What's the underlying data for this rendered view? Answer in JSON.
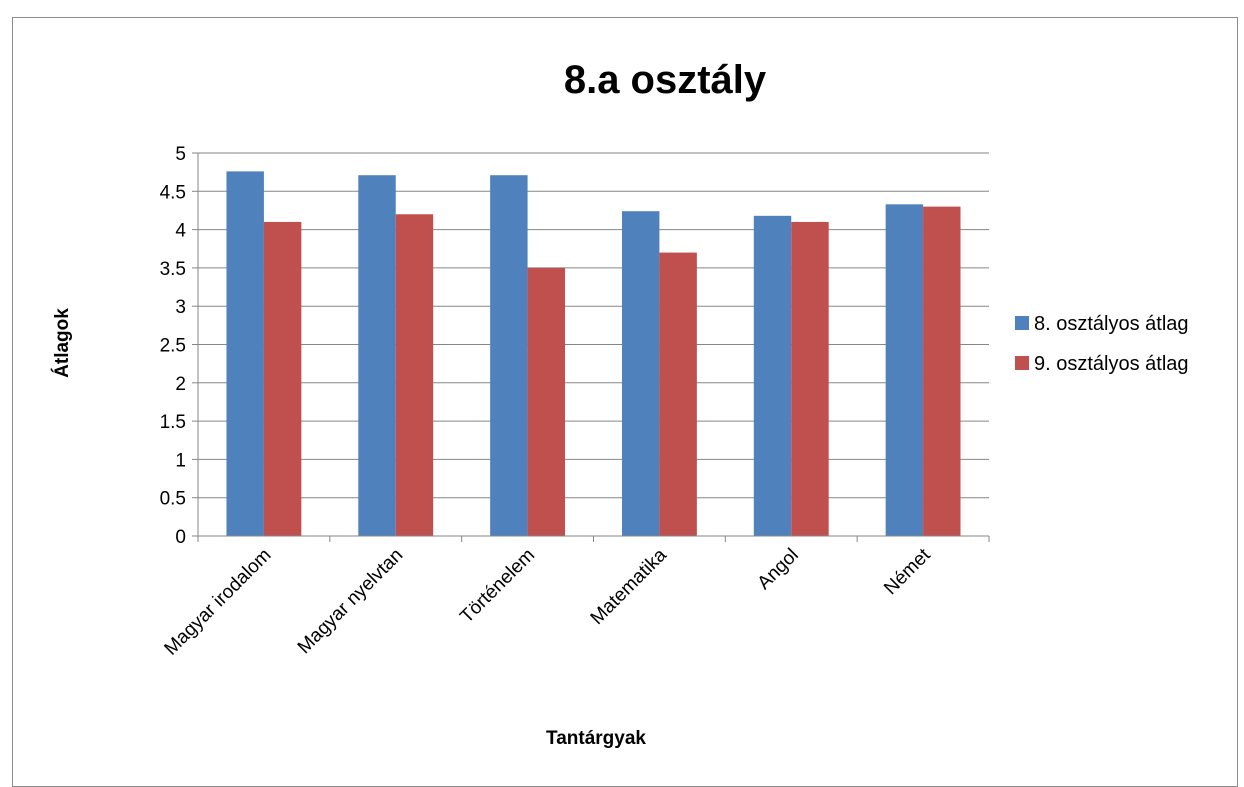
{
  "chart_data": {
    "type": "bar",
    "title": "8.a osztály",
    "xlabel": "Tantárgyak",
    "ylabel": "Átlagok",
    "categories": [
      "Magyar irodalom",
      "Magyar nyelvtan",
      "Történelem",
      "Matematika",
      "Angol",
      "Német"
    ],
    "series": [
      {
        "name": "8. osztályos átlag",
        "color": "#4F81BD",
        "values": [
          4.76,
          4.71,
          4.71,
          4.24,
          4.18,
          4.33
        ]
      },
      {
        "name": "9. osztályos átlag",
        "color": "#C0504D",
        "values": [
          4.1,
          4.2,
          3.5,
          3.7,
          4.1,
          4.3
        ]
      }
    ],
    "ylim": [
      0,
      5
    ],
    "yticks": [
      "0",
      "0.5",
      "1",
      "1.5",
      "2",
      "2.5",
      "3",
      "3.5",
      "4",
      "4.5",
      "5"
    ],
    "grid": true,
    "legend_position": "right"
  }
}
